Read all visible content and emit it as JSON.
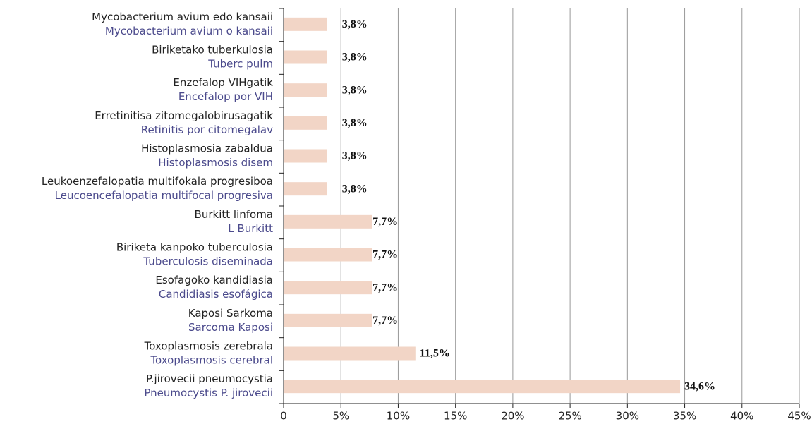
{
  "chart_data": {
    "type": "hbar",
    "categories": [
      [
        "Mycobacterium avium edo kansaii",
        "Mycobacterium avium o kansaii"
      ],
      [
        "Biriketako tuberkulosia",
        "Tuberc pulm"
      ],
      [
        "Enzefalop VIHgatik",
        "Encefalop por VIH"
      ],
      [
        "Erretinitisa zitomegalobirusagatik",
        "Retinitis por citomegalav"
      ],
      [
        "Histoplasmosia zabaldua",
        "Histoplasmosis disem"
      ],
      [
        "Leukoenzefalopatia multifokala progresiboa",
        "Leucoencefalopatia multifocal progresiva"
      ],
      [
        "Burkitt linfoma",
        "L Burkitt"
      ],
      [
        "Biriketa kanpoko tuberculosia",
        "Tuberculosis diseminada"
      ],
      [
        "Esofagoko kandidiasia",
        "Candidiasis esofágica"
      ],
      [
        "Kaposi Sarkoma",
        "Sarcoma Kaposi"
      ],
      [
        "Toxoplasmosis zerebrala",
        "Toxoplasmosis cerebral"
      ],
      [
        "P.jirovecii pneumocystia",
        "Pneumocystis P. jirovecii"
      ]
    ],
    "values": [
      3.8,
      3.8,
      3.8,
      3.8,
      3.8,
      3.8,
      7.7,
      7.7,
      7.7,
      7.7,
      11.5,
      34.6
    ],
    "value_labels": [
      "3,8%",
      "3,8%",
      "3,8%",
      "3,8%",
      "3,8%",
      "3,8%",
      "7,7%",
      "7,7%",
      "7,7%",
      "7,7%",
      "11,5%",
      "34,6%"
    ],
    "color": "#f2d5c6",
    "xlim": [
      0,
      45
    ],
    "xticks": [
      0,
      {
        "value": 5,
        "label": "5%"
      },
      {
        "value": 10,
        "label": "10%"
      },
      {
        "value": 15,
        "label": "15%"
      },
      {
        "value": 20,
        "label": "20%"
      },
      {
        "value": 25,
        "label": "25%"
      },
      {
        "value": 30,
        "label": "30%"
      },
      {
        "value": 35,
        "label": "35%"
      },
      {
        "value": 40,
        "label": "40%"
      },
      {
        "value": 45,
        "label": "45%"
      }
    ],
    "grid": true
  }
}
